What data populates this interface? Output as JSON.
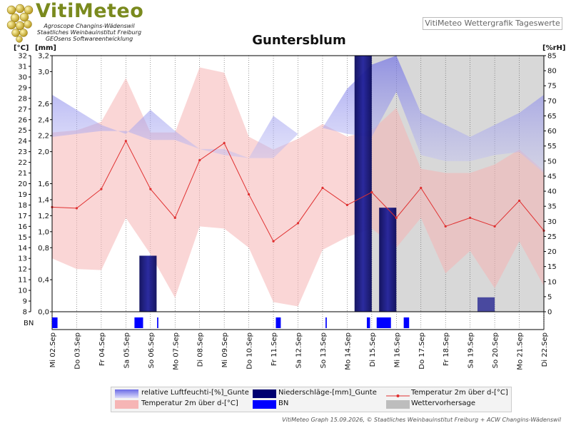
{
  "logo": {
    "title": "VitiMeteo",
    "lines": [
      "Agroscope Changins-Wädenswil",
      "Staatliches Weinbauinstitut Freiburg",
      "GEOsens Softwareentwicklung"
    ]
  },
  "header_label": "VitiMeteo Wettergrafik Tageswerte",
  "footer": "VitiMeteo Graph 15.09.2026, © Staatliches Weinbauinstitut Freiburg + ACW Changins-Wädenswil",
  "colors": {
    "humidity": "#7b7bea",
    "precip": "#000070",
    "forecast_precip": "#3a3a99",
    "temp_line": "#e03030",
    "temp_band": "#f6b5b5",
    "bn": "#0000ff",
    "forecast_bg": "#d8d8d8"
  },
  "chart_data": {
    "type": "line",
    "title": "Guntersblum",
    "x": [
      "Mi 02.Sep",
      "Do 03.Sep",
      "Fr 04.Sep",
      "Sa 05.Sep",
      "So 06.Sep",
      "Mo 07.Sep",
      "Di 08.Sep",
      "Mi 09.Sep",
      "Do 10.Sep",
      "Fr 11.Sep",
      "Sa 12.Sep",
      "So 13.Sep",
      "Mo 14.Sep",
      "Di 15.Sep",
      "Mi 16.Sep",
      "Do 17.Sep",
      "Fr 18.Sep",
      "Sa 19.Sep",
      "So 20.Sep",
      "Mo 21.Sep",
      "Di 22.Sep"
    ],
    "forecast_from": "Di 15.Sep",
    "axes": {
      "temp": {
        "label": "[°C]",
        "ylim": [
          8,
          32
        ],
        "ticks": [
          8,
          9,
          10,
          11,
          12,
          13,
          14,
          15,
          16,
          17,
          18,
          19,
          20,
          21,
          22,
          23,
          24,
          25,
          26,
          27,
          28,
          29,
          30,
          31,
          32
        ]
      },
      "precip": {
        "label": "[mm]",
        "ylim": [
          0,
          3.2
        ],
        "ticks": [
          "0,0",
          "0,4",
          "0,8",
          "1,0",
          "1,2",
          "1,4",
          "1,6",
          "2,0",
          "2,2",
          "2,4",
          "2,6",
          "3,0",
          "3,2"
        ],
        "tick_values": [
          0,
          0.4,
          0.8,
          1.0,
          1.2,
          1.4,
          1.6,
          2.0,
          2.2,
          2.4,
          2.6,
          3.0,
          3.2
        ]
      },
      "humidity": {
        "label": "[%rH]",
        "ylim": [
          0,
          85
        ],
        "ticks": [
          0,
          5,
          10,
          15,
          20,
          25,
          30,
          35,
          40,
          45,
          50,
          55,
          60,
          65,
          70,
          75,
          80,
          85
        ]
      }
    },
    "series": [
      {
        "name": "relative Luftfeuchti-[%]_Gunte",
        "type": "band",
        "points": [
          [
            0,
            72,
            58
          ],
          [
            1,
            67,
            59
          ],
          [
            2,
            62,
            60
          ],
          [
            3,
            59,
            60
          ],
          [
            4,
            67,
            57
          ],
          [
            5,
            60,
            57
          ],
          [
            6,
            54,
            54
          ],
          [
            7,
            54,
            52
          ],
          [
            8,
            51,
            51
          ],
          [
            9,
            65,
            51
          ],
          [
            10,
            59,
            59
          ],
          [
            11,
            61,
            61
          ],
          [
            12,
            74,
            59
          ],
          [
            13,
            82,
            58
          ],
          [
            14,
            85,
            73
          ],
          [
            15,
            66,
            52
          ],
          [
            16,
            62,
            50
          ],
          [
            17,
            58,
            50
          ],
          [
            18,
            62,
            52
          ],
          [
            19,
            66,
            53
          ],
          [
            20,
            72,
            46
          ]
        ]
      },
      {
        "name": "Niederschläge-[mm]_Gunte",
        "type": "bar",
        "bars": [
          [
            3.55,
            4.25,
            0.7
          ],
          [
            12.3,
            13.0,
            3.2
          ],
          [
            13.3,
            14.0,
            1.3
          ]
        ]
      },
      {
        "name": "Wettervorhersage",
        "type": "bar",
        "bars": [
          [
            17.3,
            18.0,
            0.18
          ]
        ]
      },
      {
        "name": "Temperatur 2m über d-[°C]",
        "type": "line",
        "values": [
          17.8,
          17.7,
          19.5,
          24.0,
          19.5,
          16.8,
          22.2,
          23.8,
          19.0,
          14.6,
          16.3,
          19.6,
          18.0,
          19.2,
          16.8,
          19.6,
          16.0,
          16.8,
          16.0,
          18.4,
          15.6
        ]
      },
      {
        "name": "Temperatur 2m über d-[°C]",
        "type": "band",
        "points": [
          [
            0,
            13.0,
            24.8
          ],
          [
            1,
            12.0,
            25.0
          ],
          [
            2,
            11.9,
            25.8
          ],
          [
            3,
            16.8,
            29.9
          ],
          [
            4,
            13.4,
            24.8
          ],
          [
            5,
            9.3,
            24.8
          ],
          [
            6,
            16.0,
            30.9
          ],
          [
            7,
            15.8,
            30.4
          ],
          [
            8,
            14.0,
            24.4
          ],
          [
            9,
            8.9,
            23.2
          ],
          [
            10,
            8.5,
            24.2
          ],
          [
            11,
            13.8,
            25.6
          ],
          [
            12,
            15.0,
            24.4
          ],
          [
            13,
            15.8,
            25.0
          ],
          [
            14,
            14.0,
            27.1
          ],
          [
            15,
            16.8,
            21.4
          ],
          [
            16,
            11.6,
            21.0
          ],
          [
            17,
            13.7,
            21.0
          ],
          [
            18,
            10.2,
            21.8
          ],
          [
            19,
            14.6,
            23.2
          ],
          [
            20,
            10.4,
            21.2
          ]
        ]
      },
      {
        "name": "BN",
        "type": "bar",
        "bars": [
          [
            0.0,
            0.22
          ],
          [
            3.35,
            3.7
          ],
          [
            4.27,
            4.32
          ],
          [
            9.1,
            9.3
          ],
          [
            11.12,
            11.17
          ],
          [
            12.8,
            12.93
          ],
          [
            13.2,
            13.78
          ],
          [
            14.3,
            14.52
          ]
        ]
      }
    ],
    "legend": [
      {
        "label": "relative Luftfeuchti-[%]_Gunte",
        "kind": "humidity"
      },
      {
        "label": "Niederschläge-[mm]_Gunte",
        "kind": "precip"
      },
      {
        "label": "Temperatur 2m über d-[°C]",
        "kind": "temp_line"
      },
      {
        "label": "Temperatur 2m über d-[°C]",
        "kind": "temp_band"
      },
      {
        "label": "BN",
        "kind": "bn"
      },
      {
        "label": "Wettervorhersage",
        "kind": "forecast"
      }
    ],
    "bn_label": "BN",
    "grid": true
  }
}
